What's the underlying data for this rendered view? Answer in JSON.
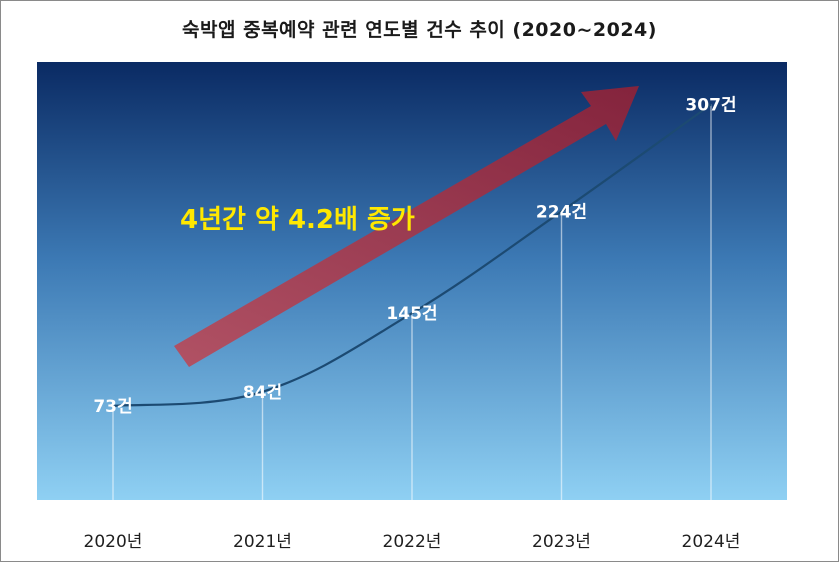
{
  "chart_data": {
    "type": "line",
    "title": "숙박앱 중복예약 관련 연도별 건수 추이 (2020~2024)",
    "categories": [
      "2020년",
      "2021년",
      "2022년",
      "2023년",
      "2024년"
    ],
    "values": [
      73,
      84,
      145,
      224,
      307
    ],
    "data_labels": [
      "73건",
      "84건",
      "145건",
      "224건",
      "307건"
    ],
    "annotation": "4년간 약 4.2배 증가",
    "ylim": [
      0,
      340
    ],
    "grid": false,
    "colors": {
      "background_top": "#0a2a63",
      "background_bottom": "#8fd0f3",
      "line": "#1c4a72",
      "arrow": "#9e2f43",
      "annotation": "#ffe800",
      "data_label": "#ffffff"
    }
  }
}
